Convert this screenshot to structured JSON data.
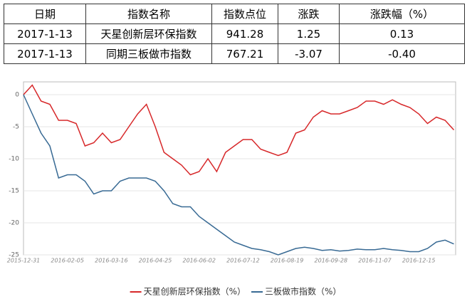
{
  "table": {
    "header": [
      "日期",
      "指数名称",
      "指数点位",
      "涨跌",
      "涨跌幅（%）"
    ],
    "rows": [
      [
        "2017-1-13",
        "天星创新层环保指数",
        "941.28",
        "1.25",
        "0.13"
      ],
      [
        "2017-1-13",
        "同期三板做市指数",
        "767.21",
        "-3.07",
        "-0.40"
      ]
    ]
  },
  "chart_data": {
    "type": "line",
    "categories": [
      "2015-12-31",
      null,
      null,
      null,
      null,
      "2016-02-05",
      null,
      null,
      null,
      null,
      "2016-03-16",
      null,
      null,
      null,
      null,
      "2016-04-25",
      null,
      null,
      null,
      null,
      "2016-06-02",
      null,
      null,
      null,
      null,
      "2016-07-12",
      null,
      null,
      null,
      null,
      "2016-08-19",
      null,
      null,
      null,
      null,
      "2016-09-28",
      null,
      null,
      null,
      null,
      "2016-11-07",
      null,
      null,
      null,
      null,
      "2016-12-15",
      null,
      null,
      null,
      null
    ],
    "series": [
      {
        "name": "天星创新层环保指数（%）",
        "color": "#d7282a",
        "values": [
          0,
          1.5,
          -1,
          -1.5,
          -4,
          -4,
          -4.5,
          -8,
          -7.5,
          -6,
          -7.5,
          -7,
          -5,
          -3,
          -1.5,
          -5,
          -9,
          -10,
          -11,
          -12.5,
          -12,
          -10,
          -12,
          -9,
          -8,
          -7,
          -7,
          -8.5,
          -9,
          -9.5,
          -9,
          -6,
          -5.5,
          -3.5,
          -2.5,
          -3,
          -3,
          -2.5,
          -2,
          -1,
          -1,
          -1.5,
          -0.8,
          -1.5,
          -2,
          -3,
          -4.5,
          -3.5,
          -4,
          -5.5
        ]
      },
      {
        "name": "三板做市指数（%）",
        "color": "#386a94",
        "values": [
          0,
          -3,
          -6,
          -8,
          -13,
          -12.5,
          -12.5,
          -13.5,
          -15.5,
          -15,
          -15,
          -13.5,
          -13,
          -13,
          -13,
          -13.5,
          -15,
          -17,
          -17.5,
          -17.5,
          -19,
          -20,
          -21,
          -22,
          -23,
          -23.5,
          -24,
          -24.2,
          -24.5,
          -25,
          -24.5,
          -24,
          -23.8,
          -24,
          -24.3,
          -24.2,
          -24.4,
          -24.3,
          -24.1,
          -24.2,
          -24.2,
          -24,
          -24.2,
          -24.3,
          -24.5,
          -24.5,
          -24,
          -23,
          -22.7,
          -23.3
        ]
      }
    ],
    "ylim": [
      -25,
      2
    ],
    "yticks": [
      0,
      -5,
      -10,
      -15,
      -20,
      -25
    ],
    "grid": true,
    "legend": "bottom"
  }
}
